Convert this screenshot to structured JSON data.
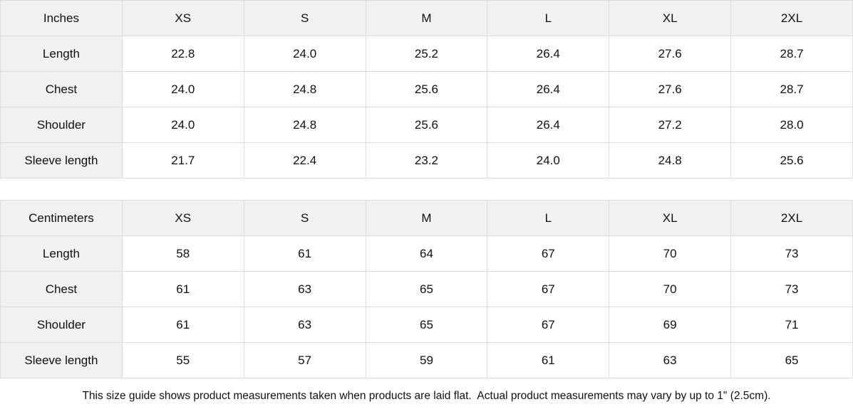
{
  "tables": [
    {
      "unit_label": "Inches",
      "sizes": [
        "XS",
        "S",
        "M",
        "L",
        "XL",
        "2XL"
      ],
      "rows": [
        {
          "label": "Length",
          "values": [
            "22.8",
            "24.0",
            "25.2",
            "26.4",
            "27.6",
            "28.7"
          ]
        },
        {
          "label": "Chest",
          "values": [
            "24.0",
            "24.8",
            "25.6",
            "26.4",
            "27.6",
            "28.7"
          ]
        },
        {
          "label": "Shoulder",
          "values": [
            "24.0",
            "24.8",
            "25.6",
            "26.4",
            "27.2",
            "28.0"
          ]
        },
        {
          "label": "Sleeve length",
          "values": [
            "21.7",
            "22.4",
            "23.2",
            "24.0",
            "24.8",
            "25.6"
          ]
        }
      ]
    },
    {
      "unit_label": "Centimeters",
      "sizes": [
        "XS",
        "S",
        "M",
        "L",
        "XL",
        "2XL"
      ],
      "rows": [
        {
          "label": "Length",
          "values": [
            "58",
            "61",
            "64",
            "67",
            "70",
            "73"
          ]
        },
        {
          "label": "Chest",
          "values": [
            "61",
            "63",
            "65",
            "67",
            "70",
            "73"
          ]
        },
        {
          "label": "Shoulder",
          "values": [
            "61",
            "63",
            "65",
            "67",
            "69",
            "71"
          ]
        },
        {
          "label": "Sleeve length",
          "values": [
            "55",
            "57",
            "59",
            "61",
            "63",
            "65"
          ]
        }
      ]
    }
  ],
  "footer_note": "This size guide shows product measurements taken when products are laid flat.  Actual product measurements may vary by up to 1\" (2.5cm).",
  "colors": {
    "header_bg": "#f1f1f1",
    "cell_bg": "#ffffff",
    "border": "#dcdcdc",
    "text": "#111111"
  }
}
